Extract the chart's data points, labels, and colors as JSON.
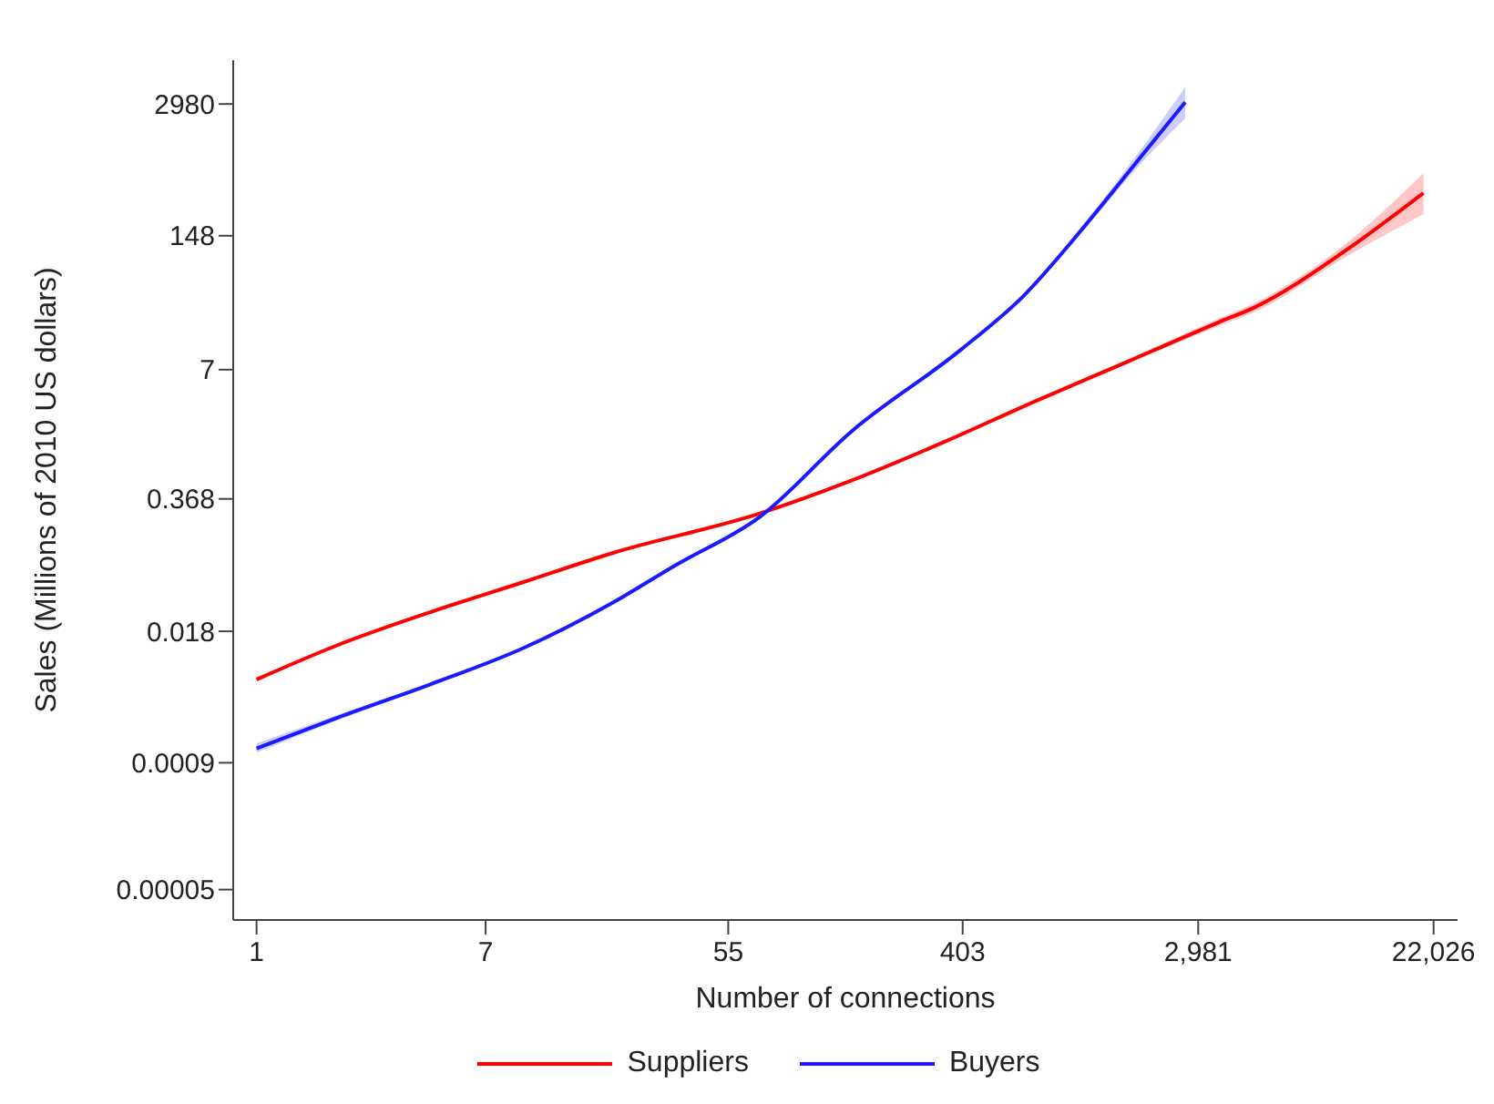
{
  "chart_data": {
    "type": "line",
    "xlabel": "Number of connections",
    "ylabel": "Sales (Millions of 2010 US dollars)",
    "log": "xy",
    "xlim": [
      0.82,
      27000
    ],
    "ylim": [
      2.5e-05,
      8100
    ],
    "xticks": [
      1,
      7,
      55,
      403,
      {
        "value": 2981,
        "label": "2,981"
      },
      {
        "value": 22026,
        "label": "22,026"
      }
    ],
    "yticks": [
      {
        "value": 5e-05,
        "label": "0.00005"
      },
      0.0009,
      0.018,
      0.368,
      7,
      148,
      2980
    ],
    "grid": false,
    "legend": "bottom",
    "marker": "none",
    "series": [
      {
        "name": "Suppliers",
        "color": "#ff0000",
        "x": [
          1,
          2,
          4.4,
          9.6,
          20.8,
          72,
          157,
          343,
          745,
          1620,
          3530,
          4820,
          10500,
          20200
        ],
        "values": [
          0.006,
          0.0132,
          0.028,
          0.055,
          0.108,
          0.264,
          0.56,
          1.34,
          3.4,
          8.3,
          20.5,
          29,
          107,
          392
        ],
        "lower": [
          0.0057,
          0.0128,
          0.027,
          0.053,
          0.105,
          0.257,
          0.545,
          1.3,
          3.3,
          7.9,
          18.8,
          26,
          92,
          243
        ],
        "upper": [
          0.0063,
          0.0136,
          0.029,
          0.057,
          0.111,
          0.271,
          0.575,
          1.38,
          3.5,
          8.7,
          22.3,
          32,
          125,
          614
        ]
      },
      {
        "name": "Buyers",
        "color": "#1a1aff",
        "x": [
          1,
          2,
          4.4,
          9.6,
          20.8,
          34.8,
          72,
          157,
          400,
          672,
          1130,
          1900,
          2670
        ],
        "values": [
          0.00125,
          0.00253,
          0.0054,
          0.0122,
          0.035,
          0.08,
          0.245,
          1.72,
          11.2,
          37,
          181,
          1010,
          3100
        ],
        "lower": [
          0.00113,
          0.00238,
          0.0052,
          0.0118,
          0.034,
          0.078,
          0.238,
          1.67,
          10.8,
          35.5,
          170,
          850,
          2140
        ],
        "upper": [
          0.0014,
          0.0027,
          0.0056,
          0.0126,
          0.036,
          0.082,
          0.252,
          1.77,
          11.6,
          38.5,
          195,
          1210,
          4400
        ]
      }
    ]
  }
}
